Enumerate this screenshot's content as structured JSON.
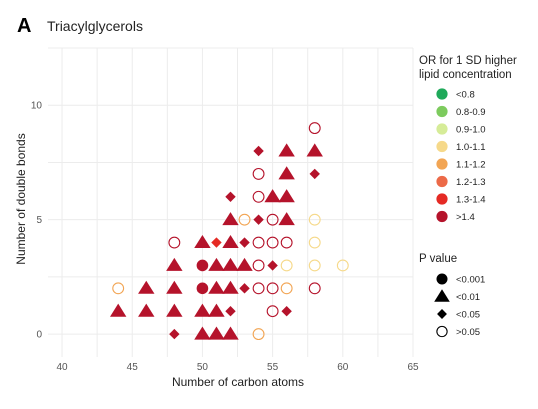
{
  "panel_letter": "A",
  "chart_data": {
    "type": "scatter",
    "title": "Triacylglycerols",
    "xlabel": "Number of carbon atoms",
    "ylabel": "Number of double bonds",
    "xlim": [
      39,
      65
    ],
    "ylim": [
      -1,
      12.5
    ],
    "xticks": [
      "40",
      "45",
      "50",
      "55",
      "60",
      "65"
    ],
    "yticks": [
      "0",
      "5",
      "10"
    ],
    "grid": true,
    "legend_placement": "right",
    "color_legend": {
      "title_line1": "OR for 1 SD higher",
      "title_line2": "lipid concentration",
      "items": [
        {
          "label": "<0.8",
          "color": "#1fa95a"
        },
        {
          "label": "0.8-0.9",
          "color": "#7dcb5e"
        },
        {
          "label": "0.9-1.0",
          "color": "#d6ec98"
        },
        {
          "label": "1.0-1.1",
          "color": "#f6d98a"
        },
        {
          "label": "1.1-1.2",
          "color": "#f2a554"
        },
        {
          "label": "1.2-1.3",
          "color": "#ec6a48"
        },
        {
          "label": "1.3-1.4",
          "color": "#e52a24"
        },
        {
          "label": ">1.4",
          "color": "#b5132b"
        }
      ]
    },
    "shape_legend": {
      "title": "P value",
      "items": [
        {
          "label": "<0.001",
          "shape": "circle"
        },
        {
          "label": "<0.01",
          "shape": "triangle"
        },
        {
          "label": "<0.05",
          "shape": "diamond"
        },
        {
          "label": ">0.05",
          "shape": "open-circle"
        }
      ]
    },
    "points": [
      {
        "x": 44,
        "y": 1,
        "shape": "triangle",
        "color": "#b5132b"
      },
      {
        "x": 44,
        "y": 2,
        "shape": "open-circle",
        "color": "#f2a554"
      },
      {
        "x": 46,
        "y": 1,
        "shape": "triangle",
        "color": "#b5132b"
      },
      {
        "x": 46,
        "y": 2,
        "shape": "triangle",
        "color": "#b5132b"
      },
      {
        "x": 48,
        "y": 0,
        "shape": "diamond",
        "color": "#b5132b"
      },
      {
        "x": 48,
        "y": 1,
        "shape": "triangle",
        "color": "#b5132b"
      },
      {
        "x": 48,
        "y": 2,
        "shape": "triangle",
        "color": "#b5132b"
      },
      {
        "x": 48,
        "y": 3,
        "shape": "triangle",
        "color": "#b5132b"
      },
      {
        "x": 48,
        "y": 4,
        "shape": "open-circle",
        "color": "#b5132b"
      },
      {
        "x": 50,
        "y": 0,
        "shape": "triangle",
        "color": "#b5132b"
      },
      {
        "x": 50,
        "y": 1,
        "shape": "triangle",
        "color": "#b5132b"
      },
      {
        "x": 50,
        "y": 2,
        "shape": "circle",
        "color": "#b5132b"
      },
      {
        "x": 50,
        "y": 3,
        "shape": "circle",
        "color": "#b5132b"
      },
      {
        "x": 50,
        "y": 4,
        "shape": "triangle",
        "color": "#b5132b"
      },
      {
        "x": 51,
        "y": 0,
        "shape": "triangle",
        "color": "#b5132b"
      },
      {
        "x": 51,
        "y": 1,
        "shape": "triangle",
        "color": "#b5132b"
      },
      {
        "x": 51,
        "y": 2,
        "shape": "triangle",
        "color": "#b5132b"
      },
      {
        "x": 51,
        "y": 3,
        "shape": "triangle",
        "color": "#b5132b"
      },
      {
        "x": 51,
        "y": 4,
        "shape": "diamond",
        "color": "#e52a24"
      },
      {
        "x": 52,
        "y": 0,
        "shape": "triangle",
        "color": "#b5132b"
      },
      {
        "x": 52,
        "y": 1,
        "shape": "diamond",
        "color": "#b5132b"
      },
      {
        "x": 52,
        "y": 2,
        "shape": "triangle",
        "color": "#b5132b"
      },
      {
        "x": 52,
        "y": 3,
        "shape": "triangle",
        "color": "#b5132b"
      },
      {
        "x": 52,
        "y": 4,
        "shape": "triangle",
        "color": "#b5132b"
      },
      {
        "x": 52,
        "y": 5,
        "shape": "triangle",
        "color": "#b5132b"
      },
      {
        "x": 52,
        "y": 6,
        "shape": "diamond",
        "color": "#b5132b"
      },
      {
        "x": 53,
        "y": 2,
        "shape": "diamond",
        "color": "#b5132b"
      },
      {
        "x": 53,
        "y": 3,
        "shape": "triangle",
        "color": "#b5132b"
      },
      {
        "x": 53,
        "y": 4,
        "shape": "diamond",
        "color": "#b5132b"
      },
      {
        "x": 53,
        "y": 5,
        "shape": "open-circle",
        "color": "#f2a554"
      },
      {
        "x": 54,
        "y": 0,
        "shape": "open-circle",
        "color": "#f2a554"
      },
      {
        "x": 54,
        "y": 2,
        "shape": "open-circle",
        "color": "#b5132b"
      },
      {
        "x": 54,
        "y": 3,
        "shape": "open-circle",
        "color": "#b5132b"
      },
      {
        "x": 54,
        "y": 4,
        "shape": "open-circle",
        "color": "#b5132b"
      },
      {
        "x": 54,
        "y": 5,
        "shape": "diamond",
        "color": "#b5132b"
      },
      {
        "x": 54,
        "y": 6,
        "shape": "open-circle",
        "color": "#b5132b"
      },
      {
        "x": 54,
        "y": 7,
        "shape": "open-circle",
        "color": "#b5132b"
      },
      {
        "x": 54,
        "y": 8,
        "shape": "diamond",
        "color": "#b5132b"
      },
      {
        "x": 55,
        "y": 1,
        "shape": "open-circle",
        "color": "#b5132b"
      },
      {
        "x": 55,
        "y": 2,
        "shape": "open-circle",
        "color": "#b5132b"
      },
      {
        "x": 55,
        "y": 3,
        "shape": "diamond",
        "color": "#b5132b"
      },
      {
        "x": 55,
        "y": 4,
        "shape": "open-circle",
        "color": "#b5132b"
      },
      {
        "x": 55,
        "y": 5,
        "shape": "open-circle",
        "color": "#b5132b"
      },
      {
        "x": 55,
        "y": 6,
        "shape": "triangle",
        "color": "#b5132b"
      },
      {
        "x": 56,
        "y": 1,
        "shape": "diamond",
        "color": "#b5132b"
      },
      {
        "x": 56,
        "y": 2,
        "shape": "open-circle",
        "color": "#f2a554"
      },
      {
        "x": 56,
        "y": 3,
        "shape": "open-circle",
        "color": "#f6d98a"
      },
      {
        "x": 56,
        "y": 4,
        "shape": "open-circle",
        "color": "#b5132b"
      },
      {
        "x": 56,
        "y": 5,
        "shape": "triangle",
        "color": "#b5132b"
      },
      {
        "x": 56,
        "y": 6,
        "shape": "triangle",
        "color": "#b5132b"
      },
      {
        "x": 56,
        "y": 7,
        "shape": "triangle",
        "color": "#b5132b"
      },
      {
        "x": 56,
        "y": 8,
        "shape": "triangle",
        "color": "#b5132b"
      },
      {
        "x": 58,
        "y": 2,
        "shape": "open-circle",
        "color": "#b5132b"
      },
      {
        "x": 58,
        "y": 3,
        "shape": "open-circle",
        "color": "#f6d98a"
      },
      {
        "x": 58,
        "y": 4,
        "shape": "open-circle",
        "color": "#f6d98a"
      },
      {
        "x": 58,
        "y": 5,
        "shape": "open-circle",
        "color": "#f6d98a"
      },
      {
        "x": 58,
        "y": 7,
        "shape": "diamond",
        "color": "#b5132b"
      },
      {
        "x": 58,
        "y": 8,
        "shape": "triangle",
        "color": "#b5132b"
      },
      {
        "x": 58,
        "y": 9,
        "shape": "open-circle",
        "color": "#b5132b"
      },
      {
        "x": 60,
        "y": 3,
        "shape": "open-circle",
        "color": "#f6d98a"
      }
    ]
  }
}
